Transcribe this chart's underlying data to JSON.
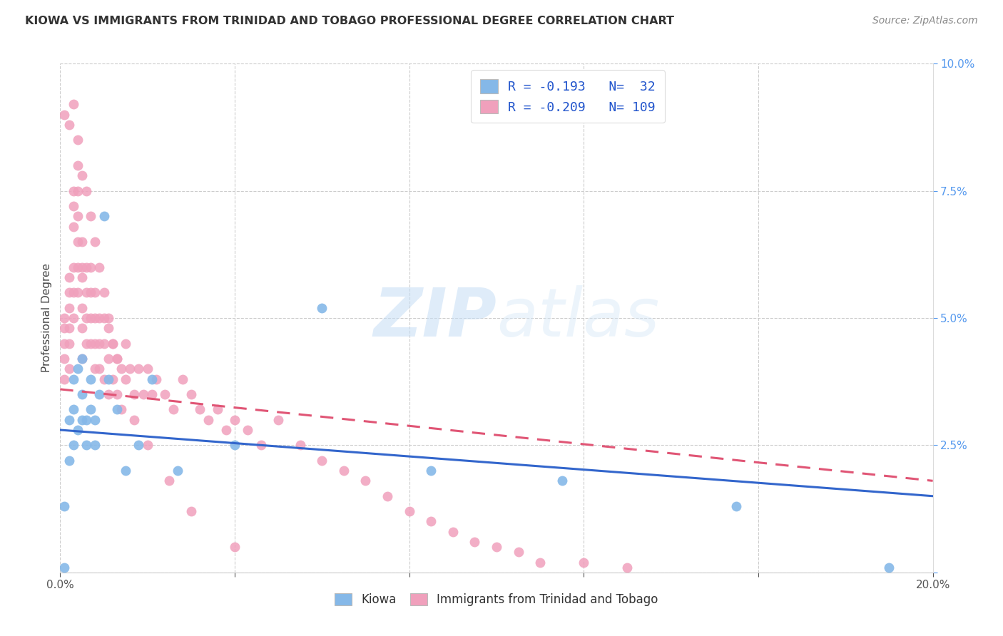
{
  "title": "KIOWA VS IMMIGRANTS FROM TRINIDAD AND TOBAGO PROFESSIONAL DEGREE CORRELATION CHART",
  "source": "Source: ZipAtlas.com",
  "ylabel": "Professional Degree",
  "xlim": [
    0.0,
    0.2
  ],
  "ylim": [
    0.0,
    0.1
  ],
  "background_color": "#ffffff",
  "kiowa_color": "#85b8e8",
  "immig_color": "#f0a0bc",
  "kiowa_line_color": "#3366cc",
  "immig_line_color": "#e05575",
  "kiowa_R": -0.193,
  "kiowa_N": 32,
  "immig_R": -0.209,
  "immig_N": 109,
  "legend_label_kiowa": "Kiowa",
  "legend_label_immig": "Immigrants from Trinidad and Tobago",
  "kiowa_line_x0": 0.0,
  "kiowa_line_y0": 0.028,
  "kiowa_line_x1": 0.2,
  "kiowa_line_y1": 0.015,
  "immig_line_x0": 0.0,
  "immig_line_y0": 0.036,
  "immig_line_x1": 0.2,
  "immig_line_y1": 0.018,
  "kiowa_pts_x": [
    0.001,
    0.001,
    0.002,
    0.002,
    0.003,
    0.003,
    0.003,
    0.004,
    0.004,
    0.005,
    0.005,
    0.005,
    0.006,
    0.006,
    0.007,
    0.007,
    0.008,
    0.008,
    0.009,
    0.01,
    0.011,
    0.013,
    0.015,
    0.018,
    0.021,
    0.027,
    0.04,
    0.06,
    0.085,
    0.115,
    0.155,
    0.19
  ],
  "kiowa_pts_y": [
    0.001,
    0.013,
    0.022,
    0.03,
    0.025,
    0.032,
    0.038,
    0.028,
    0.04,
    0.03,
    0.035,
    0.042,
    0.03,
    0.025,
    0.032,
    0.038,
    0.025,
    0.03,
    0.035,
    0.07,
    0.038,
    0.032,
    0.02,
    0.025,
    0.038,
    0.02,
    0.025,
    0.052,
    0.02,
    0.018,
    0.013,
    0.001
  ],
  "immig_pts_x": [
    0.001,
    0.001,
    0.001,
    0.001,
    0.001,
    0.002,
    0.002,
    0.002,
    0.002,
    0.002,
    0.002,
    0.003,
    0.003,
    0.003,
    0.003,
    0.003,
    0.003,
    0.004,
    0.004,
    0.004,
    0.004,
    0.004,
    0.004,
    0.005,
    0.005,
    0.005,
    0.005,
    0.005,
    0.005,
    0.006,
    0.006,
    0.006,
    0.006,
    0.007,
    0.007,
    0.007,
    0.007,
    0.008,
    0.008,
    0.008,
    0.008,
    0.009,
    0.009,
    0.009,
    0.01,
    0.01,
    0.01,
    0.011,
    0.011,
    0.011,
    0.012,
    0.012,
    0.013,
    0.013,
    0.014,
    0.014,
    0.015,
    0.016,
    0.017,
    0.018,
    0.019,
    0.02,
    0.021,
    0.022,
    0.024,
    0.026,
    0.028,
    0.03,
    0.032,
    0.034,
    0.036,
    0.038,
    0.04,
    0.043,
    0.046,
    0.05,
    0.055,
    0.06,
    0.065,
    0.07,
    0.075,
    0.08,
    0.085,
    0.09,
    0.095,
    0.1,
    0.105,
    0.11,
    0.12,
    0.13,
    0.001,
    0.002,
    0.003,
    0.004,
    0.005,
    0.006,
    0.007,
    0.008,
    0.009,
    0.01,
    0.011,
    0.012,
    0.013,
    0.015,
    0.017,
    0.02,
    0.025,
    0.03,
    0.04
  ],
  "immig_pts_y": [
    0.05,
    0.048,
    0.045,
    0.042,
    0.038,
    0.058,
    0.055,
    0.052,
    0.048,
    0.045,
    0.04,
    0.075,
    0.072,
    0.068,
    0.06,
    0.055,
    0.05,
    0.08,
    0.075,
    0.07,
    0.065,
    0.06,
    0.055,
    0.065,
    0.06,
    0.058,
    0.052,
    0.048,
    0.042,
    0.06,
    0.055,
    0.05,
    0.045,
    0.06,
    0.055,
    0.05,
    0.045,
    0.055,
    0.05,
    0.045,
    0.04,
    0.05,
    0.045,
    0.04,
    0.05,
    0.045,
    0.038,
    0.048,
    0.042,
    0.035,
    0.045,
    0.038,
    0.042,
    0.035,
    0.04,
    0.032,
    0.045,
    0.04,
    0.035,
    0.04,
    0.035,
    0.04,
    0.035,
    0.038,
    0.035,
    0.032,
    0.038,
    0.035,
    0.032,
    0.03,
    0.032,
    0.028,
    0.03,
    0.028,
    0.025,
    0.03,
    0.025,
    0.022,
    0.02,
    0.018,
    0.015,
    0.012,
    0.01,
    0.008,
    0.006,
    0.005,
    0.004,
    0.002,
    0.002,
    0.001,
    0.09,
    0.088,
    0.092,
    0.085,
    0.078,
    0.075,
    0.07,
    0.065,
    0.06,
    0.055,
    0.05,
    0.045,
    0.042,
    0.038,
    0.03,
    0.025,
    0.018,
    0.012,
    0.005
  ]
}
